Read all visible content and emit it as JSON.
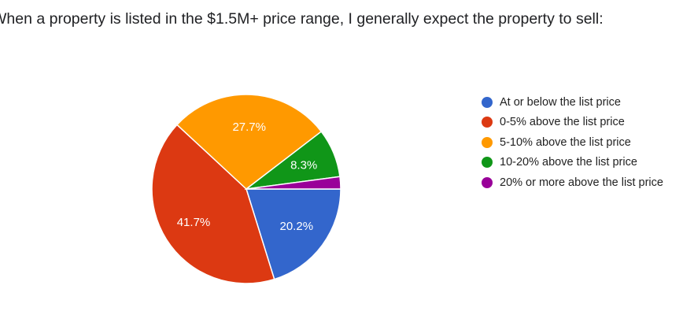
{
  "question": {
    "title": "When a property is listed in the $1.5M+ price range, I generally expect the property to sell:"
  },
  "chart_data": {
    "type": "pie",
    "title": "",
    "categories": [
      "At or below the list price",
      "0-5% above the list price",
      "5-10% above the list price",
      "10-20% above the list price",
      "20% or more above the list price"
    ],
    "values": [
      20.2,
      41.7,
      27.7,
      8.3,
      2.1
    ],
    "data_labels": [
      "20.2%",
      "41.7%",
      "27.7%",
      "8.3%",
      ""
    ],
    "colors": [
      "#3366cc",
      "#dc3912",
      "#ff9900",
      "#109618",
      "#990099"
    ],
    "legend_position": "right",
    "start_angle": "3 o'clock, clockwise"
  }
}
